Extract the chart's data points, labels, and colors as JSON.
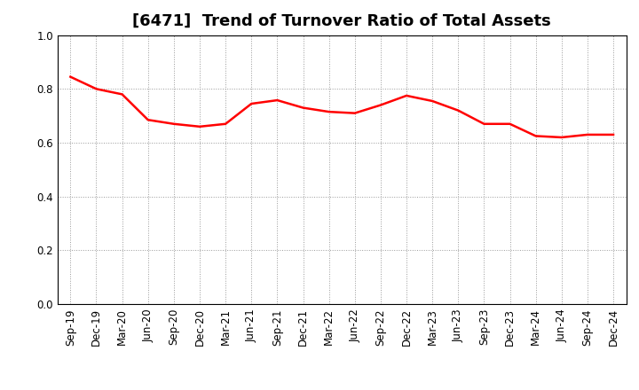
{
  "title": "[6471]  Trend of Turnover Ratio of Total Assets",
  "x_labels": [
    "Sep-19",
    "Dec-19",
    "Mar-20",
    "Jun-20",
    "Sep-20",
    "Dec-20",
    "Mar-21",
    "Jun-21",
    "Sep-21",
    "Dec-21",
    "Mar-22",
    "Jun-22",
    "Sep-22",
    "Dec-22",
    "Mar-23",
    "Jun-23",
    "Sep-23",
    "Dec-23",
    "Mar-24",
    "Jun-24",
    "Sep-24",
    "Dec-24"
  ],
  "values": [
    0.845,
    0.8,
    0.78,
    0.685,
    0.67,
    0.66,
    0.67,
    0.745,
    0.758,
    0.73,
    0.715,
    0.71,
    0.74,
    0.775,
    0.755,
    0.72,
    0.67,
    0.67,
    0.625,
    0.62,
    0.63,
    0.63
  ],
  "line_color": "#FF0000",
  "line_width": 1.8,
  "ylim": [
    0.0,
    1.0
  ],
  "yticks": [
    0.0,
    0.2,
    0.4,
    0.6,
    0.8,
    1.0
  ],
  "background_color": "#FFFFFF",
  "grid_color": "#999999",
  "title_fontsize": 13,
  "tick_fontsize": 8.5
}
